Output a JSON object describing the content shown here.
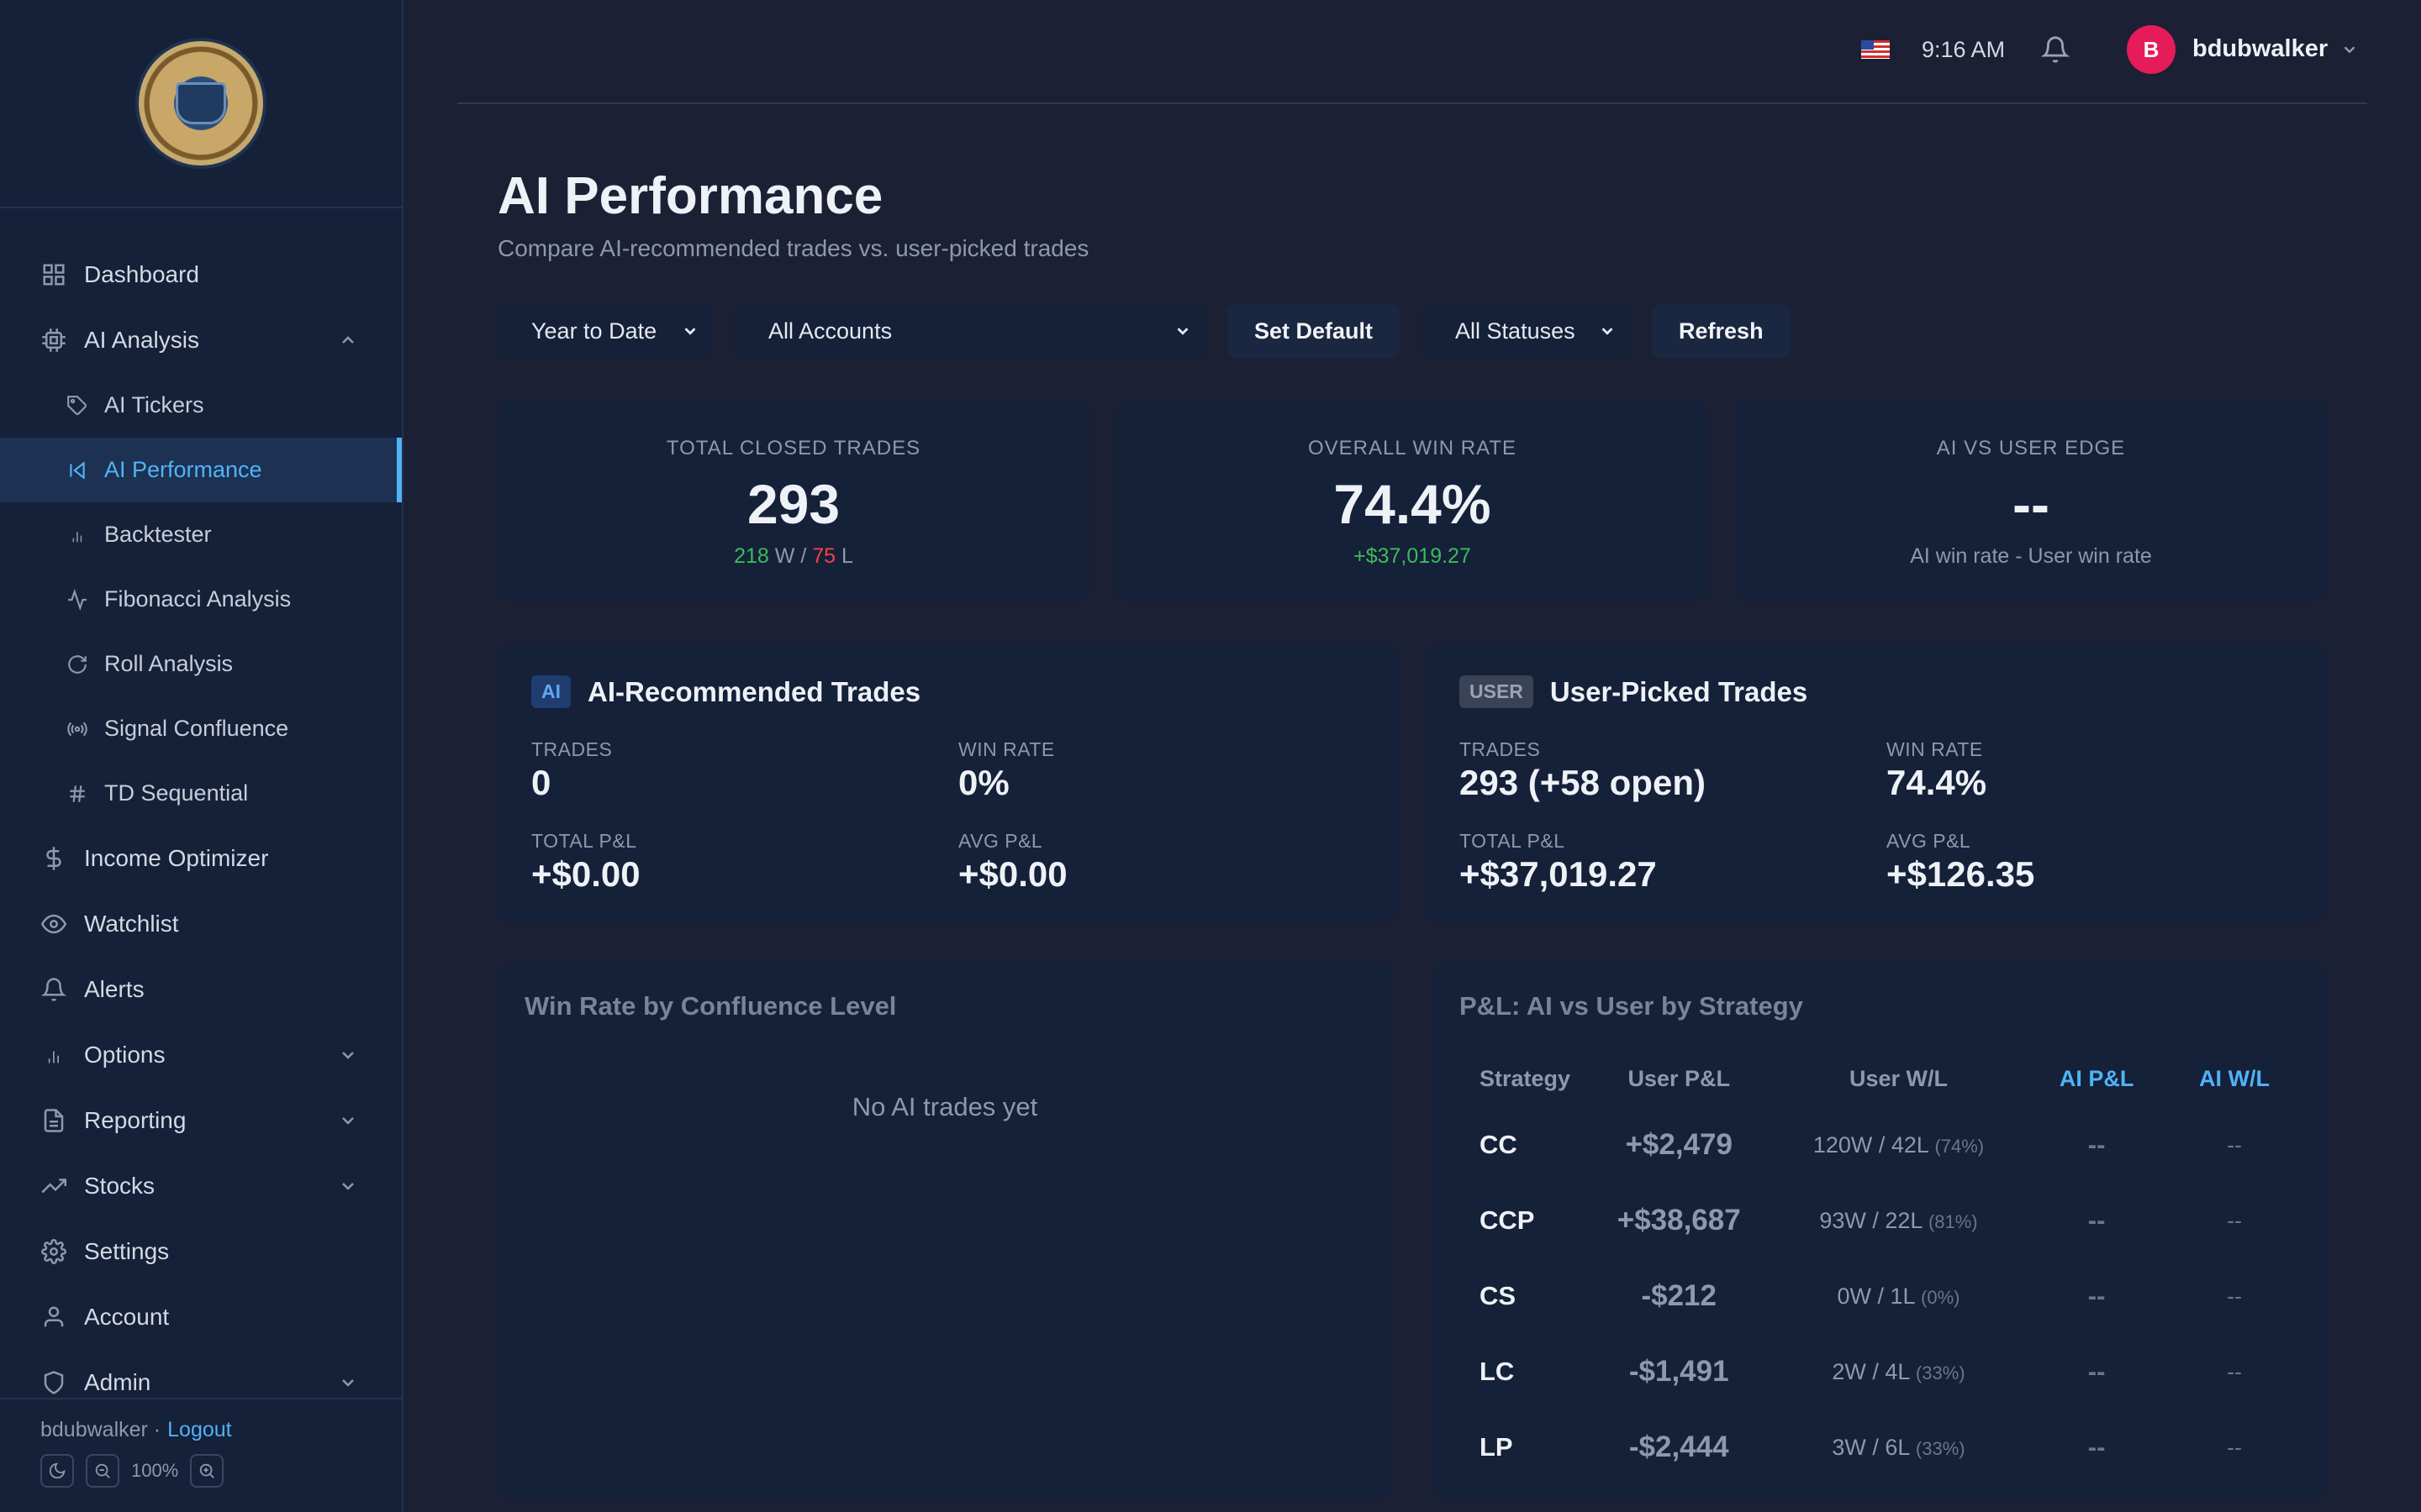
{
  "sidebar": {
    "nav": [
      {
        "label": "Dashboard",
        "icon": "grid-icon"
      },
      {
        "label": "AI Analysis",
        "icon": "cpu-icon",
        "expanded": true
      },
      {
        "label": "AI Tickers",
        "icon": "tag-icon",
        "sub": true
      },
      {
        "label": "AI Performance",
        "icon": "skip-back-icon",
        "sub": true,
        "active": true
      },
      {
        "label": "Backtester",
        "icon": "bar-chart-icon",
        "sub": true
      },
      {
        "label": "Fibonacci Analysis",
        "icon": "activity-icon",
        "sub": true
      },
      {
        "label": "Roll Analysis",
        "icon": "refresh-icon",
        "sub": true
      },
      {
        "label": "Signal Confluence",
        "icon": "broadcast-icon",
        "sub": true
      },
      {
        "label": "TD Sequential",
        "icon": "hash-icon",
        "sub": true
      },
      {
        "label": "Income Optimizer",
        "icon": "dollar-icon"
      },
      {
        "label": "Watchlist",
        "icon": "eye-icon"
      },
      {
        "label": "Alerts",
        "icon": "bell-icon"
      },
      {
        "label": "Options",
        "icon": "bar-chart-icon"
      },
      {
        "label": "Reporting",
        "icon": "file-icon"
      },
      {
        "label": "Stocks",
        "icon": "trending-up-icon"
      },
      {
        "label": "Settings",
        "icon": "gear-icon"
      },
      {
        "label": "Account",
        "icon": "user-icon"
      },
      {
        "label": "Admin",
        "icon": "shield-icon"
      }
    ],
    "footer": {
      "user": "bdubwalker ·",
      "logout": "Logout",
      "zoom": "100%"
    }
  },
  "topbar": {
    "time": "9:16 AM",
    "avatar_initial": "B",
    "username": "bdubwalker"
  },
  "page": {
    "title": "AI Performance",
    "subtitle": "Compare AI-recommended trades vs. user-picked trades"
  },
  "filters": {
    "period": "Year to Date",
    "accounts": "All Accounts",
    "set_default": "Set Default",
    "statuses": "All Statuses",
    "refresh": "Refresh"
  },
  "stats": {
    "closed": {
      "label": "TOTAL CLOSED TRADES",
      "value": "293",
      "wins": "218",
      "w": "W",
      "sep": "/",
      "losses": "75",
      "l": "L"
    },
    "winrate": {
      "label": "OVERALL WIN RATE",
      "value": "74.4%",
      "sub": "+$37,019.27"
    },
    "edge": {
      "label": "AI VS USER EDGE",
      "value": "--",
      "sub": "AI win rate - User win rate"
    }
  },
  "ai_card": {
    "badge": "AI",
    "title": "AI-Recommended Trades",
    "trades_label": "TRADES",
    "trades": "0",
    "winrate_label": "WIN RATE",
    "winrate": "0%",
    "total_label": "TOTAL P&L",
    "total": "+$0.00",
    "avg_label": "AVG P&L",
    "avg": "+$0.00"
  },
  "user_card": {
    "badge": "USER",
    "title": "User-Picked Trades",
    "trades_label": "TRADES",
    "trades": "293 (+58 open)",
    "winrate_label": "WIN RATE",
    "winrate": "74.4%",
    "total_label": "TOTAL P&L",
    "total": "+$37,019.27",
    "avg_label": "AVG P&L",
    "avg": "+$126.35"
  },
  "confluence": {
    "title": "Win Rate by Confluence Level",
    "empty": "No AI trades yet"
  },
  "strategy": {
    "title": "P&L: AI vs User by Strategy",
    "headers": [
      "Strategy",
      "User P&L",
      "User W/L",
      "AI P&L",
      "AI W/L"
    ],
    "rows": [
      {
        "code": "CC",
        "pl": "+$2,479",
        "wl": "120W / 42L",
        "pct": "(74%)",
        "ai_pl": "--",
        "ai_wl": "--"
      },
      {
        "code": "CCP",
        "pl": "+$38,687",
        "wl": "93W / 22L",
        "pct": "(81%)",
        "ai_pl": "--",
        "ai_wl": "--"
      },
      {
        "code": "CS",
        "pl": "-$212",
        "wl": "0W / 1L",
        "pct": "(0%)",
        "ai_pl": "--",
        "ai_wl": "--"
      },
      {
        "code": "LC",
        "pl": "-$1,491",
        "wl": "2W / 4L",
        "pct": "(33%)",
        "ai_pl": "--",
        "ai_wl": "--"
      },
      {
        "code": "LP",
        "pl": "-$2,444",
        "wl": "3W / 6L",
        "pct": "(33%)",
        "ai_pl": "--",
        "ai_wl": "--"
      }
    ]
  },
  "colors": {
    "accent": "#4fb3f6",
    "positive": "#3dbb5a",
    "negative": "#ef4444",
    "avatar": "#e61b5a"
  }
}
